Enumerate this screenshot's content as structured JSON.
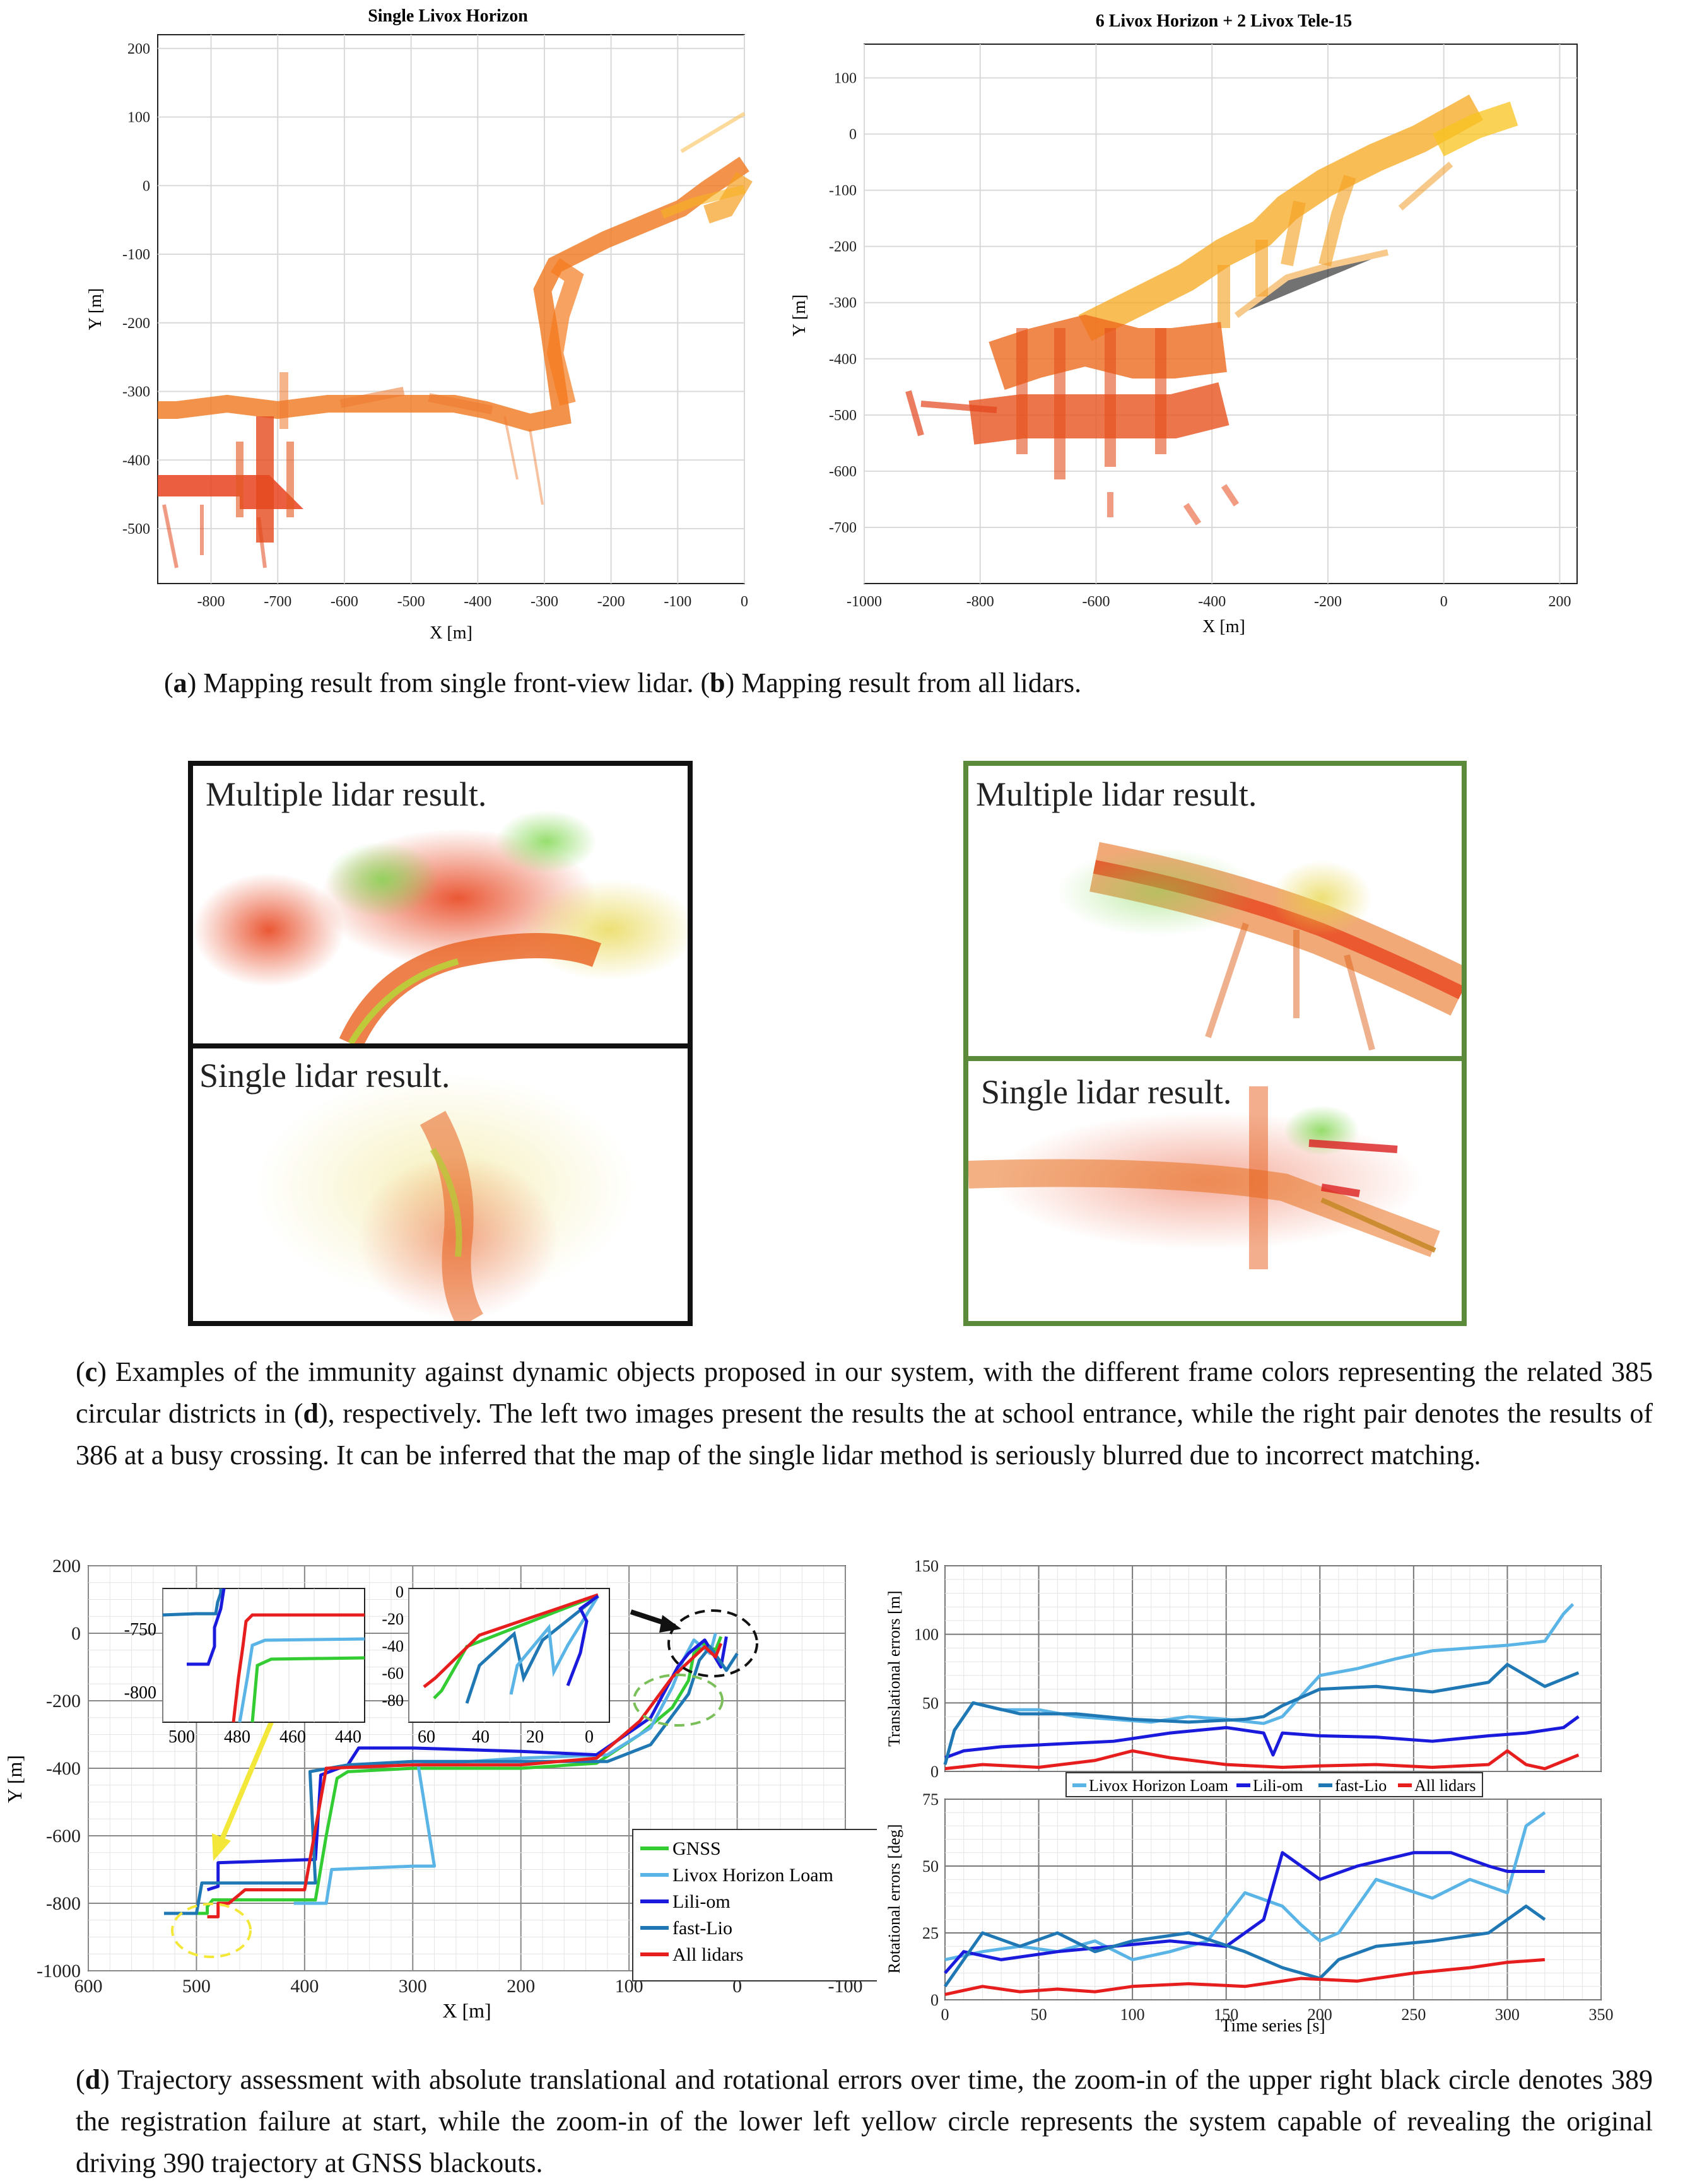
{
  "figure_a": {
    "chart_data": {
      "type": "scatter",
      "title": "Single Livox Horizon",
      "xlabel": "X [m]",
      "ylabel": "Y [m]",
      "xlim": [
        -880,
        0
      ],
      "ylim": [
        -580,
        220
      ],
      "xticks": [
        "-800",
        "-700",
        "-600",
        "-500",
        "-400",
        "-300",
        "-200",
        "-100",
        "0"
      ],
      "yticks": [
        "200",
        "100",
        "0",
        "-100",
        "-200",
        "-300",
        "-400",
        "-500"
      ],
      "grid": true
    }
  },
  "figure_b": {
    "chart_data": {
      "type": "scatter",
      "title": "6 Livox Horizon + 2 Livox Tele-15",
      "xlabel": "X [m]",
      "ylabel": "Y [m]",
      "xlim": [
        -1000,
        230
      ],
      "ylim": [
        -800,
        160
      ],
      "xticks": [
        "-1000",
        "-800",
        "-600",
        "-400",
        "-200",
        "0",
        "200"
      ],
      "yticks": [
        "100",
        "0",
        "-100",
        "-200",
        "-300",
        "-400",
        "-500",
        "-600",
        "-700"
      ],
      "grid": true
    }
  },
  "caption_ab": {
    "a_letter": "a",
    "a_text": ") Mapping result from single front-view lidar. (",
    "b_letter": "b",
    "b_text": ") Mapping result from all lidars.",
    "open_paren": "("
  },
  "figure_c": {
    "left_top_label": "Multiple lidar result.",
    "left_bottom_label": "Single lidar result.",
    "right_top_label": "Multiple lidar result.",
    "right_bottom_label": "Single lidar result.",
    "left_frame_color": "#111111",
    "right_frame_color": "#5b8a3a"
  },
  "caption_c": {
    "letter": "c",
    "part1": ") Examples of the immunity against dynamic objects proposed in our system, with the different frame colors representing the related 385 circular districts in (",
    "ref": "d",
    "part2": "), respectively. The left two images present the results the at school entrance, while the right pair denotes the results of 386 at a busy crossing. It can be inferred that the map of the single lidar method is seriously blurred due to incorrect matching."
  },
  "figure_d_traj": {
    "chart_data": {
      "type": "line",
      "xlabel": "X [m]",
      "ylabel": "Y [m]",
      "xlim": [
        600,
        -100
      ],
      "ylim": [
        -1000,
        200
      ],
      "xticks": [
        "600",
        "500",
        "400",
        "300",
        "200",
        "100",
        "0",
        "-100"
      ],
      "yticks": [
        "200",
        "0",
        "-200",
        "-400",
        "-600",
        "-800",
        "-1000"
      ],
      "inset_left": {
        "xticks": [
          "500",
          "480",
          "460",
          "440"
        ],
        "yticks": [
          "-750",
          "-800"
        ]
      },
      "inset_right": {
        "xticks": [
          "60",
          "40",
          "20",
          "0"
        ],
        "yticks": [
          "0",
          "-20",
          "-40",
          "-60",
          "-80"
        ]
      },
      "series": [
        {
          "name": "GNSS",
          "color": "#33cc33"
        },
        {
          "name": "Livox Horizon Loam",
          "color": "#5ab4e6"
        },
        {
          "name": "Lili-om",
          "color": "#1a1adc"
        },
        {
          "name": "fast-Lio",
          "color": "#1f77b4"
        },
        {
          "name": "All lidars",
          "color": "#e61e1e"
        }
      ]
    }
  },
  "figure_d_errors": {
    "chart_data": [
      {
        "type": "line",
        "ylabel": "Translational errors [m]",
        "ylim": [
          0,
          150
        ],
        "yticks": [
          "150",
          "100",
          "50",
          "0"
        ],
        "xlim": [
          0,
          350
        ],
        "series": [
          {
            "name": "Livox Horizon Loam",
            "color": "#5ab4e6",
            "x": [
              0,
              5,
              15,
              30,
              50,
              70,
              90,
              110,
              130,
              150,
              170,
              180,
              190,
              200,
              220,
              240,
              260,
              280,
              300,
              320,
              330,
              335
            ],
            "y": [
              5,
              30,
              50,
              45,
              45,
              40,
              38,
              36,
              40,
              38,
              35,
              40,
              55,
              70,
              75,
              82,
              88,
              90,
              92,
              95,
              115,
              122
            ]
          },
          {
            "name": "Lili-om",
            "color": "#1a1adc",
            "x": [
              0,
              10,
              30,
              60,
              90,
              120,
              150,
              170,
              175,
              180,
              200,
              230,
              260,
              290,
              310,
              330,
              338
            ],
            "y": [
              10,
              15,
              18,
              20,
              22,
              28,
              32,
              28,
              12,
              28,
              26,
              25,
              22,
              26,
              28,
              32,
              40
            ]
          },
          {
            "name": "fast-Lio",
            "color": "#1f77b4",
            "x": [
              0,
              5,
              15,
              40,
              70,
              100,
              130,
              160,
              170,
              180,
              200,
              230,
              260,
              290,
              300,
              320,
              338
            ],
            "y": [
              5,
              30,
              50,
              42,
              42,
              38,
              36,
              38,
              40,
              48,
              60,
              62,
              58,
              65,
              78,
              62,
              72
            ]
          },
          {
            "name": "All lidars",
            "color": "#e61e1e",
            "x": [
              0,
              20,
              50,
              80,
              100,
              120,
              150,
              180,
              200,
              230,
              260,
              290,
              300,
              310,
              320,
              338
            ],
            "y": [
              2,
              5,
              3,
              8,
              15,
              10,
              5,
              3,
              4,
              5,
              3,
              5,
              15,
              5,
              2,
              12
            ]
          }
        ]
      },
      {
        "type": "line",
        "xlabel": "Time series [s]",
        "ylabel": "Rotational errors [deg]",
        "ylim": [
          0,
          75
        ],
        "yticks": [
          "75",
          "50",
          "25",
          "0"
        ],
        "xlim": [
          0,
          350
        ],
        "xticks": [
          "0",
          "50",
          "100",
          "150",
          "200",
          "250",
          "300",
          "350"
        ],
        "series": [
          {
            "name": "Livox Horizon Loam",
            "color": "#5ab4e6",
            "x": [
              0,
              20,
              40,
              60,
              80,
              100,
              120,
              140,
              160,
              180,
              190,
              200,
              210,
              230,
              260,
              280,
              300,
              310,
              320
            ],
            "y": [
              15,
              18,
              20,
              18,
              22,
              15,
              18,
              22,
              40,
              35,
              28,
              22,
              25,
              45,
              38,
              45,
              40,
              65,
              70
            ]
          },
          {
            "name": "Lili-om",
            "color": "#1a1adc",
            "x": [
              0,
              10,
              30,
              60,
              90,
              120,
              150,
              170,
              180,
              200,
              220,
              250,
              270,
              290,
              300,
              320
            ],
            "y": [
              10,
              18,
              15,
              18,
              20,
              22,
              20,
              30,
              55,
              45,
              50,
              55,
              55,
              50,
              48,
              48
            ]
          },
          {
            "name": "fast-Lio",
            "color": "#1f77b4",
            "x": [
              0,
              20,
              40,
              60,
              80,
              100,
              130,
              160,
              180,
              200,
              210,
              230,
              260,
              290,
              300,
              310,
              320
            ],
            "y": [
              5,
              25,
              20,
              25,
              18,
              22,
              25,
              18,
              12,
              8,
              15,
              20,
              22,
              25,
              30,
              35,
              30
            ]
          },
          {
            "name": "All lidars",
            "color": "#e61e1e",
            "x": [
              0,
              20,
              40,
              60,
              80,
              100,
              130,
              160,
              190,
              220,
              250,
              280,
              300,
              320
            ],
            "y": [
              2,
              5,
              3,
              4,
              3,
              5,
              6,
              5,
              8,
              7,
              10,
              12,
              14,
              15
            ]
          }
        ]
      }
    ],
    "legend": [
      "Livox Horizon Loam",
      "Lili-om",
      "fast-Lio",
      "All lidars"
    ]
  },
  "caption_d": {
    "letter": "d",
    "text": ") Trajectory assessment with absolute translational and rotational errors over time, the zoom-in of the upper right black circle denotes 389 the registration failure at start, while the zoom-in of the lower left yellow circle represents the system capable of revealing the original driving 390 trajectory at GNSS blackouts."
  }
}
